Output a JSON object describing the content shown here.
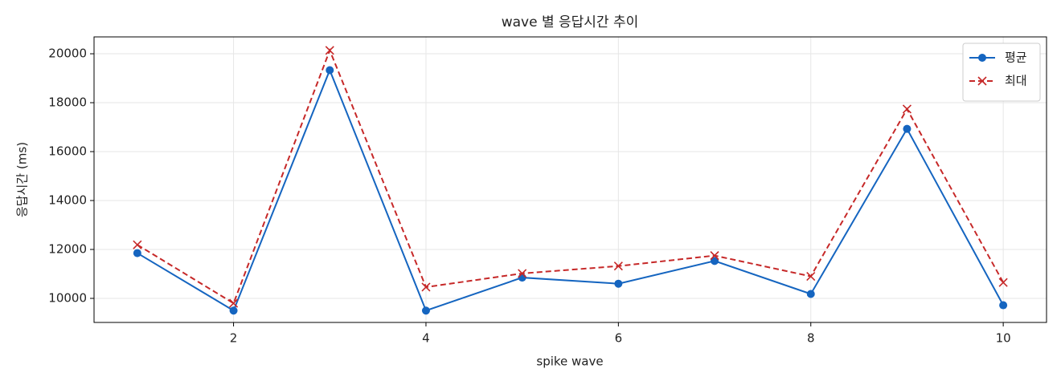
{
  "chart_data": {
    "type": "line",
    "title": "wave 별 응답시간 추이",
    "x_label": "spike wave",
    "y_label": "응답시간 (ms)",
    "x": [
      1,
      2,
      3,
      4,
      5,
      6,
      7,
      8,
      9,
      10
    ],
    "series": [
      {
        "name": "평균",
        "color": "#1565c0",
        "marker": "circle",
        "linestyle": "solid",
        "values": [
          11850,
          9500,
          19330,
          9500,
          10850,
          10600,
          11530,
          10180,
          16930,
          9720
        ]
      },
      {
        "name": "최대",
        "color": "#c62828",
        "marker": "x",
        "linestyle": "dashed",
        "values": [
          12190,
          9800,
          20140,
          10460,
          11020,
          11320,
          11750,
          10900,
          17740,
          10650
        ]
      }
    ],
    "xlim": [
      0.55,
      10.45
    ],
    "ylim": [
      9016,
      20690
    ],
    "xticks": [
      2,
      4,
      6,
      8,
      10
    ],
    "yticks": [
      10000,
      12000,
      14000,
      16000,
      18000,
      20000
    ],
    "grid": true,
    "legend": "upper-right"
  }
}
